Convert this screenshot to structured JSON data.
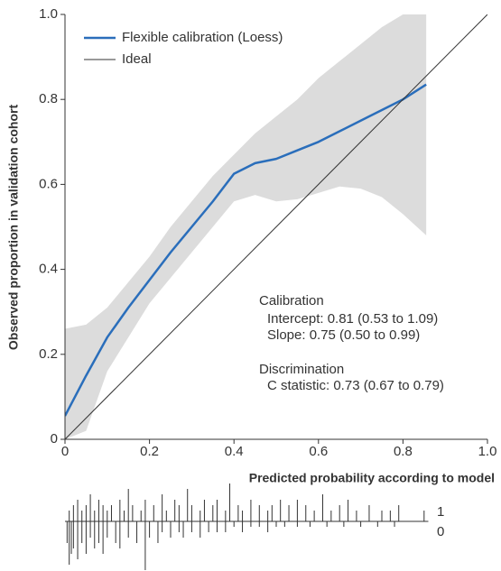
{
  "chart_data": {
    "type": "line",
    "xlabel": "Predicted probability according to model",
    "ylabel": "Observed proportion in validation cohort",
    "xlim": [
      0,
      1
    ],
    "ylim": [
      0,
      1
    ],
    "xticks": [
      0,
      0.2,
      0.4,
      0.6,
      0.8,
      {
        "value": 1,
        "label": "1.0"
      }
    ],
    "yticks": [
      0,
      0.2,
      0.4,
      0.6,
      0.8,
      {
        "value": 1,
        "label": "1.0"
      }
    ],
    "x": [
      0,
      0.05,
      0.1,
      0.15,
      0.2,
      0.25,
      0.3,
      0.35,
      0.4,
      0.45,
      0.5,
      0.55,
      0.6,
      0.65,
      0.7,
      0.75,
      0.8,
      0.855
    ],
    "series": [
      {
        "name": "Flexible calibration (Loess)",
        "color": "#2a6ebb",
        "values": [
          0.055,
          0.15,
          0.24,
          0.31,
          0.375,
          0.44,
          0.5,
          0.56,
          0.625,
          0.65,
          0.66,
          0.68,
          0.7,
          0.725,
          0.75,
          0.775,
          0.8,
          0.835
        ]
      },
      {
        "name": "Ideal",
        "color": "#333333",
        "x": [
          0,
          1
        ],
        "values": [
          0,
          1
        ]
      }
    ],
    "band": {
      "color": "#dcdcdc",
      "upper": [
        0.26,
        0.27,
        0.31,
        0.37,
        0.43,
        0.5,
        0.56,
        0.62,
        0.67,
        0.72,
        0.76,
        0.8,
        0.85,
        0.89,
        0.93,
        0.97,
        1,
        1
      ],
      "lower": [
        0,
        0.02,
        0.16,
        0.24,
        0.32,
        0.38,
        0.44,
        0.5,
        0.56,
        0.575,
        0.56,
        0.565,
        0.58,
        0.595,
        0.59,
        0.57,
        0.53,
        0.48
      ]
    },
    "annotations": [
      "Calibration",
      "Intercept: 0.81 (0.53 to 1.09)",
      "Slope: 0.75 (0.50 to 0.99)",
      "Discrimination",
      "C statistic: 0.73 (0.67 to 0.79)"
    ],
    "rug": {
      "up_label": "1",
      "down_label": "0",
      "up_x": [
        0.01,
        0.02,
        0.03,
        0.04,
        0.05,
        0.06,
        0.07,
        0.08,
        0.09,
        0.1,
        0.11,
        0.13,
        0.14,
        0.15,
        0.16,
        0.18,
        0.19,
        0.21,
        0.23,
        0.24,
        0.26,
        0.27,
        0.29,
        0.3,
        0.32,
        0.33,
        0.35,
        0.36,
        0.38,
        0.39,
        0.41,
        0.42,
        0.44,
        0.46,
        0.48,
        0.49,
        0.51,
        0.53,
        0.55,
        0.57,
        0.59,
        0.61,
        0.63,
        0.65,
        0.67,
        0.69,
        0.72,
        0.75,
        0.77,
        0.79,
        0.85
      ],
      "up_counts": [
        2,
        3,
        4,
        2,
        3,
        5,
        2,
        4,
        3,
        2,
        3,
        4,
        2,
        6,
        3,
        2,
        4,
        3,
        5,
        2,
        4,
        3,
        6,
        3,
        2,
        4,
        3,
        4,
        2,
        7,
        3,
        2,
        4,
        3,
        2,
        3,
        4,
        3,
        4,
        3,
        2,
        5,
        2,
        3,
        4,
        2,
        3,
        2,
        2,
        3,
        2
      ],
      "down_x": [
        0.005,
        0.01,
        0.015,
        0.02,
        0.03,
        0.04,
        0.05,
        0.06,
        0.07,
        0.08,
        0.09,
        0.1,
        0.12,
        0.13,
        0.15,
        0.17,
        0.19,
        0.2,
        0.22,
        0.23,
        0.25,
        0.27,
        0.28,
        0.3,
        0.32,
        0.34,
        0.36,
        0.38,
        0.4,
        0.42,
        0.44,
        0.46,
        0.48,
        0.5,
        0.52,
        0.55,
        0.58,
        0.62,
        0.66,
        0.7,
        0.74,
        0.78
      ],
      "down_counts": [
        4,
        8,
        6,
        5,
        7,
        4,
        6,
        3,
        5,
        4,
        6,
        3,
        4,
        5,
        3,
        4,
        9,
        3,
        4,
        2,
        3,
        2,
        3,
        2,
        3,
        2,
        2,
        2,
        1,
        2,
        1,
        1,
        2,
        1,
        1,
        1,
        1,
        1,
        1,
        1,
        1,
        1
      ]
    }
  }
}
